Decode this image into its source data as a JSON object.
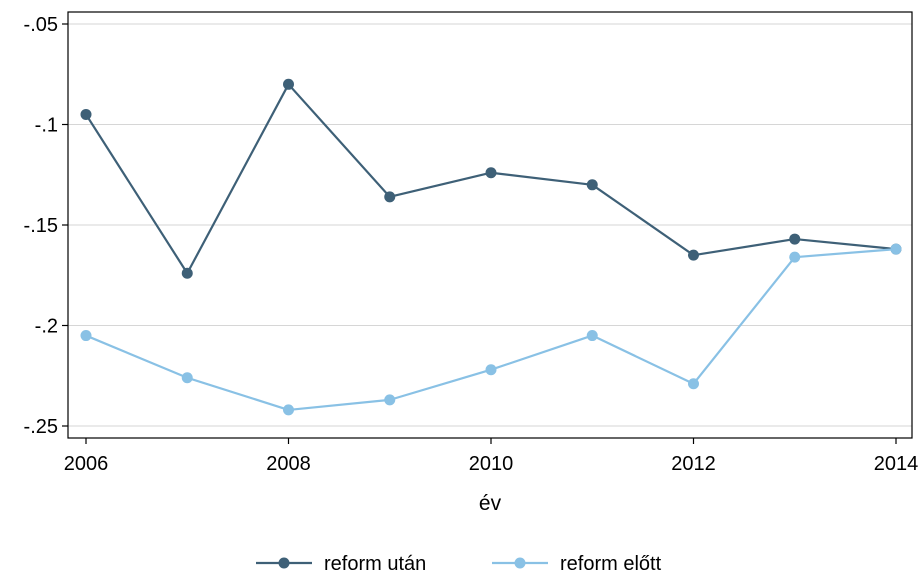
{
  "chart_data": {
    "type": "line",
    "title": "",
    "xlabel": "év",
    "ylabel": "",
    "x": [
      2006,
      2007,
      2008,
      2009,
      2010,
      2011,
      2012,
      2013,
      2014
    ],
    "xlim": [
      2006,
      2014
    ],
    "xticks": [
      2006,
      2008,
      2010,
      2012,
      2014
    ],
    "ylim": [
      -0.25,
      -0.05
    ],
    "yticks": [
      -0.25,
      -0.2,
      -0.15,
      -0.1,
      -0.05
    ],
    "ytick_labels": [
      "-.25",
      "-.2",
      "-.15",
      "-.1",
      "-.05"
    ],
    "grid": true,
    "legend_position": "bottom",
    "series": [
      {
        "name": "reform után",
        "color": "#3e6077",
        "values": [
          -0.095,
          -0.174,
          -0.08,
          -0.136,
          -0.124,
          -0.13,
          -0.165,
          -0.157,
          -0.162
        ]
      },
      {
        "name": "reform előtt",
        "color": "#89c1e5",
        "values": [
          -0.205,
          -0.226,
          -0.242,
          -0.237,
          -0.222,
          -0.205,
          -0.229,
          -0.166,
          -0.162
        ]
      }
    ]
  }
}
